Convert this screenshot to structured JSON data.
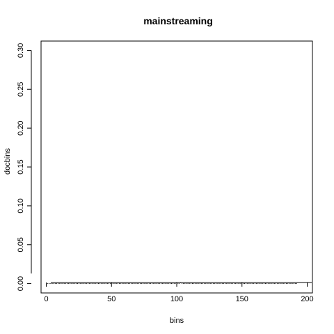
{
  "chart_data": {
    "type": "scatter",
    "title": "mainstreaming",
    "xlabel": "bins",
    "ylabel": "docbins",
    "xlim": [
      -4,
      204
    ],
    "ylim": [
      -0.012,
      0.312
    ],
    "x_ticks": [
      0,
      50,
      100,
      150,
      200
    ],
    "x_tick_labels": [
      "0",
      "50",
      "100",
      "150",
      "200"
    ],
    "y_ticks": [
      0.0,
      0.05,
      0.1,
      0.15,
      0.2,
      0.25,
      0.3
    ],
    "y_tick_labels": [
      "0.00",
      "0.05",
      "0.10",
      "0.15",
      "0.20",
      "0.25",
      "0.30"
    ],
    "grid": false,
    "legend": "none",
    "point_color": "#000000",
    "series": [
      {
        "x_start": 0,
        "x_end": 192,
        "x_step": 1,
        "baseline_value": 0.0,
        "nonzero_points": [
          {
            "x": 103,
            "y": 0.0012
          }
        ]
      }
    ]
  }
}
